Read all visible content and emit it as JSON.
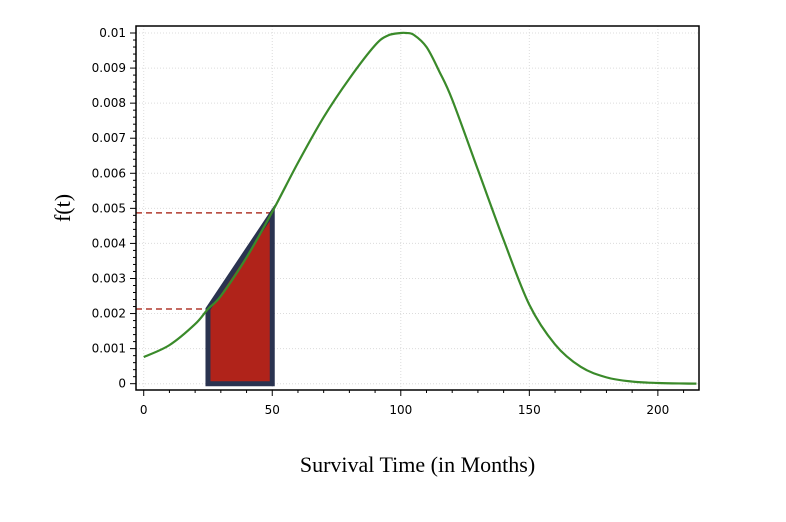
{
  "chart_data": {
    "type": "line",
    "title": "",
    "xlabel": "Survival Time (in Months)",
    "ylabel": "f(t)",
    "xlim": [
      -3,
      216
    ],
    "ylim": [
      -0.00018,
      0.0102
    ],
    "x_ticks": [
      0,
      50,
      100,
      150,
      200
    ],
    "x_tick_labels": [
      "0",
      "50",
      "100",
      "150",
      "200"
    ],
    "y_ticks": [
      0,
      0.001,
      0.002,
      0.003,
      0.004,
      0.005,
      0.006,
      0.007,
      0.008,
      0.009,
      0.01
    ],
    "y_tick_labels": [
      "0",
      "0.001",
      "0.002",
      "0.003",
      "0.004",
      "0.005",
      "0.006",
      "0.007",
      "0.008",
      "0.009",
      "0.01"
    ],
    "grid": true,
    "series": [
      {
        "color": "#3a8a2a",
        "x": [
          0,
          10,
          20,
          25,
          30,
          40,
          50,
          60,
          70,
          80,
          90,
          95,
          100,
          102,
          105,
          110,
          115,
          120,
          130,
          140,
          150,
          160,
          170,
          180,
          190,
          200,
          210,
          215
        ],
        "y": [
          0.00076,
          0.0011,
          0.0017,
          0.00213,
          0.0025,
          0.0036,
          0.0049,
          0.0063,
          0.0076,
          0.0087,
          0.00965,
          0.00993,
          0.01,
          0.01,
          0.00995,
          0.0096,
          0.0089,
          0.0081,
          0.0061,
          0.0041,
          0.00225,
          0.00112,
          0.00048,
          0.00018,
          6e-05,
          2e-05,
          5e-06,
          2e-06
        ]
      }
    ],
    "shaded_region": {
      "x_start": 25,
      "x_end": 50,
      "y_start": 0.00213,
      "y_end": 0.00487,
      "fill": "#b0231a",
      "stroke": "#2a3350"
    },
    "reference_lines": [
      {
        "x_start": 0,
        "x_end": 25,
        "y": 0.00213,
        "color": "#b03a2e"
      },
      {
        "x_start": 0,
        "x_end": 50,
        "y": 0.00487,
        "color": "#b03a2e"
      }
    ]
  }
}
